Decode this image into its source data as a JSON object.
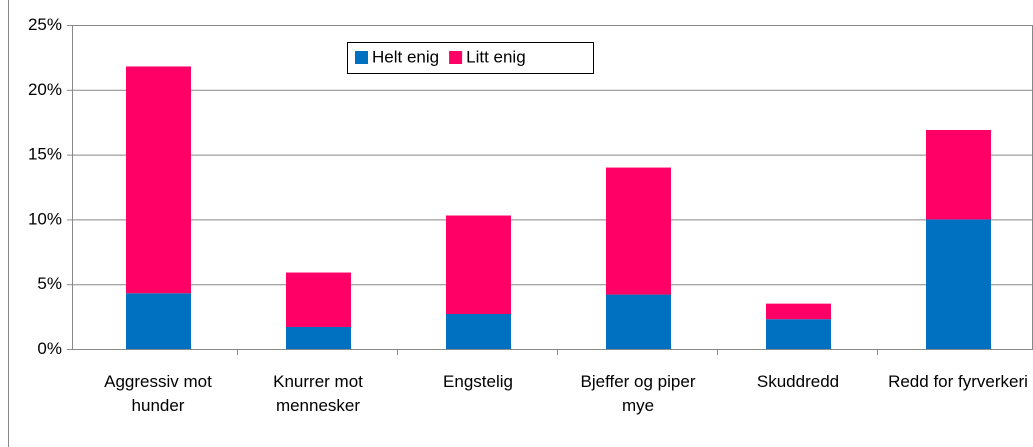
{
  "chart_data": {
    "type": "stacked_bar",
    "categories": [
      "Aggressiv mot hunder",
      "Knurrer mot mennesker",
      "Engstelig",
      "Bjeffer og piper mye",
      "Skuddredd",
      "Redd for fyrverkeri"
    ],
    "series": [
      {
        "name": "Helt enig",
        "color": "#0070c0",
        "values": [
          4.3,
          1.7,
          2.7,
          4.2,
          2.3,
          10.0
        ]
      },
      {
        "name": "Litt enig",
        "color": "#ff0066",
        "values": [
          17.5,
          4.2,
          7.6,
          9.8,
          1.2,
          6.9
        ]
      }
    ],
    "ylim": [
      0,
      25
    ],
    "yticks": [
      {
        "value": 0,
        "label": "0%"
      },
      {
        "value": 5,
        "label": "5%"
      },
      {
        "value": 10,
        "label": "10%"
      },
      {
        "value": 15,
        "label": "15%"
      },
      {
        "value": 20,
        "label": "20%"
      },
      {
        "value": 25,
        "label": "25%"
      }
    ],
    "grid": true
  }
}
